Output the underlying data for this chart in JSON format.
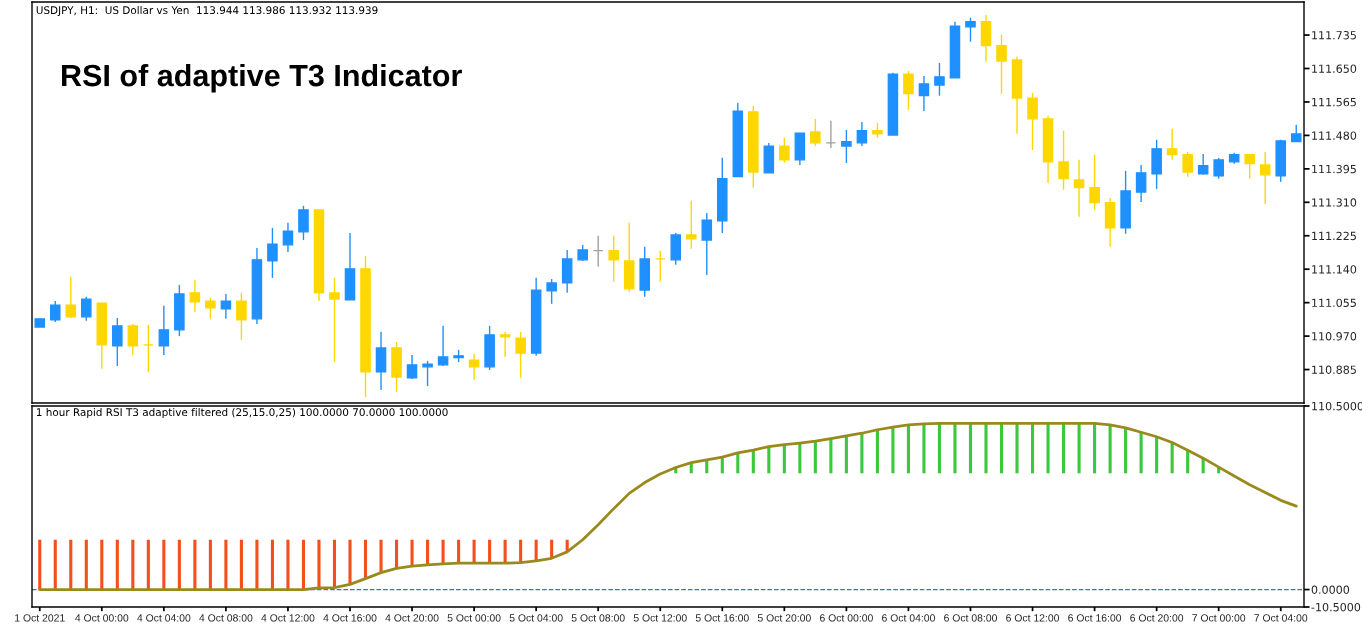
{
  "chart_data": [
    {
      "type": "candlestick",
      "title": "RSI of adaptive T3 Indicator",
      "annotations": [
        "USDJPY, H1:  US Dollar vs Yen  113.944 113.986 113.932 113.939"
      ],
      "categories": [
        null,
        null,
        null,
        null,
        null,
        null,
        null,
        null,
        null,
        null,
        null,
        null,
        null,
        null,
        null,
        null,
        null,
        null,
        null,
        null,
        null,
        null,
        null,
        null,
        null,
        null,
        null,
        null,
        null,
        null,
        null,
        null,
        null,
        null,
        null,
        null,
        null,
        null,
        null,
        null,
        null,
        null,
        null,
        null,
        null,
        null,
        null,
        null,
        null,
        null,
        null,
        null,
        null,
        null,
        null,
        null,
        null,
        null,
        null,
        null,
        null,
        null,
        null,
        null,
        null,
        null,
        null,
        null,
        null,
        null,
        null,
        null,
        null,
        null,
        null,
        null,
        null,
        null,
        null,
        null,
        null,
        null
      ],
      "ohlc": [
        [
          110.993,
          111.014,
          110.993,
          111.014
        ],
        [
          111.011,
          111.059,
          111.006,
          111.049
        ],
        [
          111.049,
          111.12,
          111.016,
          111.019
        ],
        [
          111.019,
          111.07,
          111.009,
          111.064
        ],
        [
          111.054,
          111.054,
          110.887,
          110.948
        ],
        [
          110.945,
          111.016,
          110.894,
          110.996
        ],
        [
          110.996,
          111.001,
          110.922,
          110.945
        ],
        [
          110.948,
          110.998,
          110.879,
          110.948
        ],
        [
          110.945,
          111.047,
          110.922,
          110.986
        ],
        [
          110.986,
          111.1,
          110.97,
          111.077
        ],
        [
          111.08,
          111.113,
          111.031,
          111.057
        ],
        [
          111.059,
          111.067,
          111.014,
          111.042
        ],
        [
          111.039,
          111.077,
          111.014,
          111.059
        ],
        [
          111.059,
          111.08,
          110.96,
          111.011
        ],
        [
          111.014,
          111.194,
          111.001,
          111.164
        ],
        [
          111.161,
          111.245,
          111.118,
          111.204
        ],
        [
          111.202,
          111.258,
          111.184,
          111.237
        ],
        [
          111.235,
          111.301,
          111.214,
          111.291
        ],
        [
          111.291,
          111.291,
          111.059,
          111.08
        ],
        [
          111.08,
          111.118,
          110.904,
          111.064
        ],
        [
          111.062,
          111.232,
          111.062,
          111.141
        ],
        [
          111.141,
          111.174,
          110.815,
          110.879
        ],
        [
          110.879,
          110.981,
          110.833,
          110.94
        ],
        [
          110.94,
          110.955,
          110.828,
          110.866
        ],
        [
          110.864,
          110.922,
          110.861,
          110.897
        ],
        [
          110.892,
          110.907,
          110.843,
          110.899
        ],
        [
          110.897,
          110.996,
          110.894,
          110.917
        ],
        [
          110.915,
          110.935,
          110.904,
          110.92
        ],
        [
          110.909,
          110.925,
          110.859,
          110.892
        ],
        [
          110.892,
          110.996,
          110.884,
          110.973
        ],
        [
          110.973,
          110.981,
          110.917,
          110.968
        ],
        [
          110.965,
          110.981,
          110.864,
          110.927
        ],
        [
          110.927,
          111.118,
          110.92,
          111.087
        ],
        [
          111.085,
          111.115,
          111.052,
          111.105
        ],
        [
          111.105,
          111.189,
          111.08,
          111.166
        ],
        [
          111.164,
          111.202,
          111.161,
          111.189
        ],
        [
          111.187,
          111.225,
          111.146,
          111.187
        ],
        [
          111.187,
          111.225,
          111.108,
          111.164
        ],
        [
          111.161,
          111.258,
          111.082,
          111.09
        ],
        [
          111.087,
          111.197,
          111.07,
          111.166
        ],
        [
          111.166,
          111.187,
          111.108,
          111.166
        ],
        [
          111.164,
          111.232,
          111.151,
          111.227
        ],
        [
          111.227,
          111.314,
          111.192,
          111.217
        ],
        [
          111.214,
          111.283,
          111.125,
          111.265
        ],
        [
          111.263,
          111.423,
          111.232,
          111.37
        ],
        [
          111.375,
          111.563,
          111.375,
          111.542
        ],
        [
          111.54,
          111.555,
          111.347,
          111.387
        ],
        [
          111.385,
          111.461,
          111.385,
          111.453
        ],
        [
          111.453,
          111.474,
          111.41,
          111.418
        ],
        [
          111.418,
          111.486,
          111.405,
          111.486
        ],
        [
          111.489,
          111.522,
          111.453,
          111.461
        ],
        [
          111.461,
          111.517,
          111.448,
          111.461
        ],
        [
          111.453,
          111.494,
          111.41,
          111.464
        ],
        [
          111.461,
          111.514,
          111.453,
          111.492
        ],
        [
          111.492,
          111.512,
          111.474,
          111.484
        ],
        [
          111.481,
          111.639,
          111.481,
          111.636
        ],
        [
          111.636,
          111.644,
          111.545,
          111.586
        ],
        [
          111.581,
          111.631,
          111.542,
          111.611
        ],
        [
          111.608,
          111.664,
          111.581,
          111.629
        ],
        [
          111.626,
          111.769,
          111.626,
          111.758
        ],
        [
          111.756,
          111.779,
          111.718,
          111.769
        ],
        [
          111.769,
          111.786,
          111.667,
          111.708
        ],
        [
          111.708,
          111.736,
          111.586,
          111.669
        ],
        [
          111.672,
          111.68,
          111.484,
          111.575
        ],
        [
          111.575,
          111.588,
          111.443,
          111.522
        ],
        [
          111.522,
          111.53,
          111.359,
          111.413
        ],
        [
          111.413,
          111.492,
          111.342,
          111.37
        ],
        [
          111.367,
          111.418,
          111.273,
          111.347
        ],
        [
          111.347,
          111.431,
          111.291,
          111.309
        ],
        [
          111.309,
          111.321,
          111.197,
          111.245
        ],
        [
          111.245,
          111.39,
          111.23,
          111.339
        ],
        [
          111.336,
          111.405,
          111.311,
          111.385
        ],
        [
          111.382,
          111.469,
          111.344,
          111.446
        ],
        [
          111.446,
          111.497,
          111.418,
          111.431
        ],
        [
          111.431,
          111.438,
          111.375,
          111.387
        ],
        [
          111.382,
          111.433,
          111.38,
          111.403
        ],
        [
          111.377,
          111.423,
          111.37,
          111.418
        ],
        [
          111.413,
          111.436,
          111.408,
          111.431
        ],
        [
          111.431,
          111.433,
          111.37,
          111.408
        ],
        [
          111.405,
          111.438,
          111.306,
          111.38
        ],
        [
          111.377,
          111.469,
          111.362,
          111.466
        ],
        [
          111.464,
          111.507,
          111.464,
          111.484
        ]
      ],
      "colors": [
        "#1e90ff",
        "#1e90ff",
        "#ffd700",
        "#1e90ff",
        "#ffd700",
        "#1e90ff",
        "#ffd700",
        "#ffd700",
        "#1e90ff",
        "#1e90ff",
        "#ffd700",
        "#ffd700",
        "#1e90ff",
        "#ffd700",
        "#1e90ff",
        "#1e90ff",
        "#1e90ff",
        "#1e90ff",
        "#ffd700",
        "#ffd700",
        "#1e90ff",
        "#ffd700",
        "#1e90ff",
        "#ffd700",
        "#1e90ff",
        "#1e90ff",
        "#1e90ff",
        "#1e90ff",
        "#ffd700",
        "#1e90ff",
        "#ffd700",
        "#ffd700",
        "#1e90ff",
        "#1e90ff",
        "#1e90ff",
        "#1e90ff",
        "#a0a0a0",
        "#ffd700",
        "#ffd700",
        "#1e90ff",
        "#ffd700",
        "#1e90ff",
        "#ffd700",
        "#1e90ff",
        "#1e90ff",
        "#1e90ff",
        "#ffd700",
        "#1e90ff",
        "#ffd700",
        "#1e90ff",
        "#ffd700",
        "#a0a0a0",
        "#1e90ff",
        "#1e90ff",
        "#ffd700",
        "#1e90ff",
        "#ffd700",
        "#1e90ff",
        "#1e90ff",
        "#1e90ff",
        "#1e90ff",
        "#ffd700",
        "#ffd700",
        "#ffd700",
        "#ffd700",
        "#ffd700",
        "#ffd700",
        "#ffd700",
        "#ffd700",
        "#ffd700",
        "#1e90ff",
        "#1e90ff",
        "#1e90ff",
        "#ffd700",
        "#ffd700",
        "#1e90ff",
        "#1e90ff",
        "#1e90ff",
        "#ffd700",
        "#ffd700",
        "#1e90ff",
        "#1e90ff"
      ],
      "ylim": [
        110.8,
        111.819
      ],
      "yticks": [
        110.885,
        {
          "value": 110.97,
          "label": "110.970"
        },
        111.055,
        {
          "value": 111.14,
          "label": "111.140"
        },
        111.225,
        {
          "value": 111.31,
          "label": "111.310"
        },
        111.395,
        {
          "value": 111.48,
          "label": "111.480"
        },
        111.565,
        {
          "value": 111.65,
          "label": "111.650"
        },
        111.735
      ]
    },
    {
      "type": "bar",
      "annotations": [
        "1 hour Rapid RSI T3 adaptive filtered (25,15.0,25) 100.0000 70.0000 100.0000"
      ],
      "categories": [
        "1 Oct 2021",
        null,
        null,
        null,
        "4 Oct 00:00",
        null,
        null,
        null,
        "4 Oct 04:00",
        null,
        null,
        null,
        "4 Oct 08:00",
        null,
        null,
        null,
        "4 Oct 12:00",
        null,
        null,
        null,
        "4 Oct 16:00",
        null,
        null,
        null,
        "4 Oct 20:00",
        null,
        null,
        null,
        "5 Oct 00:00",
        null,
        null,
        null,
        "5 Oct 04:00",
        null,
        null,
        null,
        "5 Oct 08:00",
        null,
        null,
        null,
        "5 Oct 12:00",
        null,
        null,
        null,
        "5 Oct 16:00",
        null,
        null,
        null,
        "5 Oct 20:00",
        null,
        null,
        null,
        "6 Oct 00:00",
        null,
        null,
        null,
        "6 Oct 04:00",
        null,
        null,
        null,
        "6 Oct 08:00",
        null,
        null,
        null,
        "6 Oct 12:00",
        null,
        null,
        null,
        "6 Oct 16:00",
        null,
        null,
        null,
        "6 Oct 20:00",
        null,
        null,
        null,
        "7 Oct 00:00",
        null,
        null,
        null,
        "7 Oct 04:00",
        null
      ],
      "series": [
        {
          "type": "bar",
          "color": "#f4501c",
          "base": [
            0,
            0,
            0,
            0,
            0,
            0,
            0,
            0,
            0,
            0,
            0,
            0,
            0,
            0,
            0,
            0,
            0,
            0,
            1,
            1.2,
            3.1,
            6.6,
            10.2,
            12.8,
            14.1,
            14.9,
            15.4,
            15.9,
            15.9,
            15.9,
            15.9,
            16.2,
            17.2,
            18.8,
            22.7,
            null,
            null,
            null,
            null,
            null,
            null,
            null,
            null,
            null,
            null,
            null,
            null,
            null,
            null,
            null,
            null,
            null,
            null,
            null,
            null,
            null,
            null,
            null,
            null,
            null,
            null,
            null,
            null,
            null,
            null,
            null,
            null,
            null,
            null,
            null,
            null,
            null,
            null,
            null,
            null,
            null,
            null,
            null,
            null,
            null,
            null,
            null
          ],
          "values": [
            30,
            30,
            30,
            30,
            30,
            30,
            30,
            30,
            30,
            30,
            30,
            30,
            30,
            30,
            30,
            30,
            30,
            30,
            29,
            28.8,
            26.9,
            23.4,
            19.8,
            17.2,
            15.9,
            15.1,
            14.6,
            14.1,
            14.1,
            14.1,
            14.1,
            13.8,
            12.8,
            11.2,
            7.3,
            null,
            null,
            null,
            null,
            null,
            null,
            null,
            null,
            null,
            null,
            null,
            null,
            null,
            null,
            null,
            null,
            null,
            null,
            null,
            null,
            null,
            null,
            null,
            null,
            null,
            null,
            null,
            null,
            null,
            null,
            null,
            null,
            null,
            null,
            null,
            null,
            null,
            null,
            null,
            null,
            null,
            null,
            null,
            null,
            null,
            null,
            null
          ]
        },
        {
          "type": "bar",
          "color": "#3cc83c",
          "base": [
            null,
            null,
            null,
            null,
            null,
            null,
            null,
            null,
            null,
            null,
            null,
            null,
            null,
            null,
            null,
            null,
            null,
            null,
            null,
            null,
            null,
            null,
            null,
            null,
            null,
            null,
            null,
            null,
            null,
            null,
            null,
            null,
            null,
            null,
            null,
            null,
            null,
            null,
            null,
            null,
            null,
            70,
            70,
            70,
            70,
            70,
            70,
            70,
            70,
            70,
            70,
            70,
            70,
            70,
            70,
            70,
            70,
            70,
            70,
            70,
            70,
            70,
            70,
            70,
            70,
            70,
            70,
            70,
            70,
            70,
            70,
            70,
            70,
            70,
            70,
            70,
            70,
            null,
            null,
            null,
            null,
            null
          ],
          "values": [
            null,
            null,
            null,
            null,
            null,
            null,
            null,
            null,
            null,
            null,
            null,
            null,
            null,
            null,
            null,
            null,
            null,
            null,
            null,
            null,
            null,
            null,
            null,
            null,
            null,
            null,
            null,
            null,
            null,
            null,
            null,
            null,
            null,
            null,
            null,
            null,
            null,
            null,
            null,
            null,
            null,
            3.5,
            6.4,
            8.1,
            9.7,
            12.3,
            13.9,
            16.1,
            17.2,
            18.2,
            19.3,
            20.9,
            22.5,
            24.1,
            26.2,
            27.8,
            29.2,
            29.7,
            30,
            30,
            30,
            30,
            30,
            30,
            30,
            30,
            30,
            30,
            30,
            29.2,
            27.3,
            24.7,
            22,
            18.5,
            13.9,
            9.1,
            3.7,
            null,
            null,
            null,
            null,
            null
          ]
        },
        {
          "type": "line",
          "color": "#9a8a1e",
          "values": [
            0,
            0,
            0,
            0,
            0,
            0,
            0,
            0,
            0,
            0,
            0,
            0,
            0,
            0,
            0,
            0,
            0,
            0,
            1,
            1.2,
            3.1,
            6.6,
            10.2,
            12.8,
            14.1,
            14.9,
            15.4,
            15.9,
            15.9,
            15.9,
            15.9,
            16.2,
            17.2,
            18.8,
            22.7,
            30,
            39,
            48.7,
            57.9,
            64.4,
            69.6,
            73.5,
            76.4,
            78.1,
            79.7,
            82.3,
            83.9,
            86.1,
            87.2,
            88.2,
            89.3,
            90.9,
            92.5,
            94.1,
            96.2,
            97.8,
            99.2,
            99.7,
            100,
            100,
            100,
            100,
            100,
            100,
            100,
            100,
            100,
            100,
            100,
            99.2,
            97.3,
            94.7,
            92,
            88.5,
            83.9,
            79.1,
            73.7,
            68.4,
            63.1,
            58.5,
            53.7,
            50.2
          ]
        }
      ],
      "ref_lines": [
        {
          "axis": "y",
          "value": 0,
          "color": "#4b6cb7",
          "line_style": "dashed"
        }
      ],
      "ylim": [
        -10.5,
        110.5
      ],
      "yticks": [
        {
          "value": 110.5,
          "label": "110.5000"
        },
        {
          "value": 0,
          "label": "0.0000"
        },
        {
          "value": -10.5,
          "label": "-10.5000"
        }
      ]
    }
  ]
}
